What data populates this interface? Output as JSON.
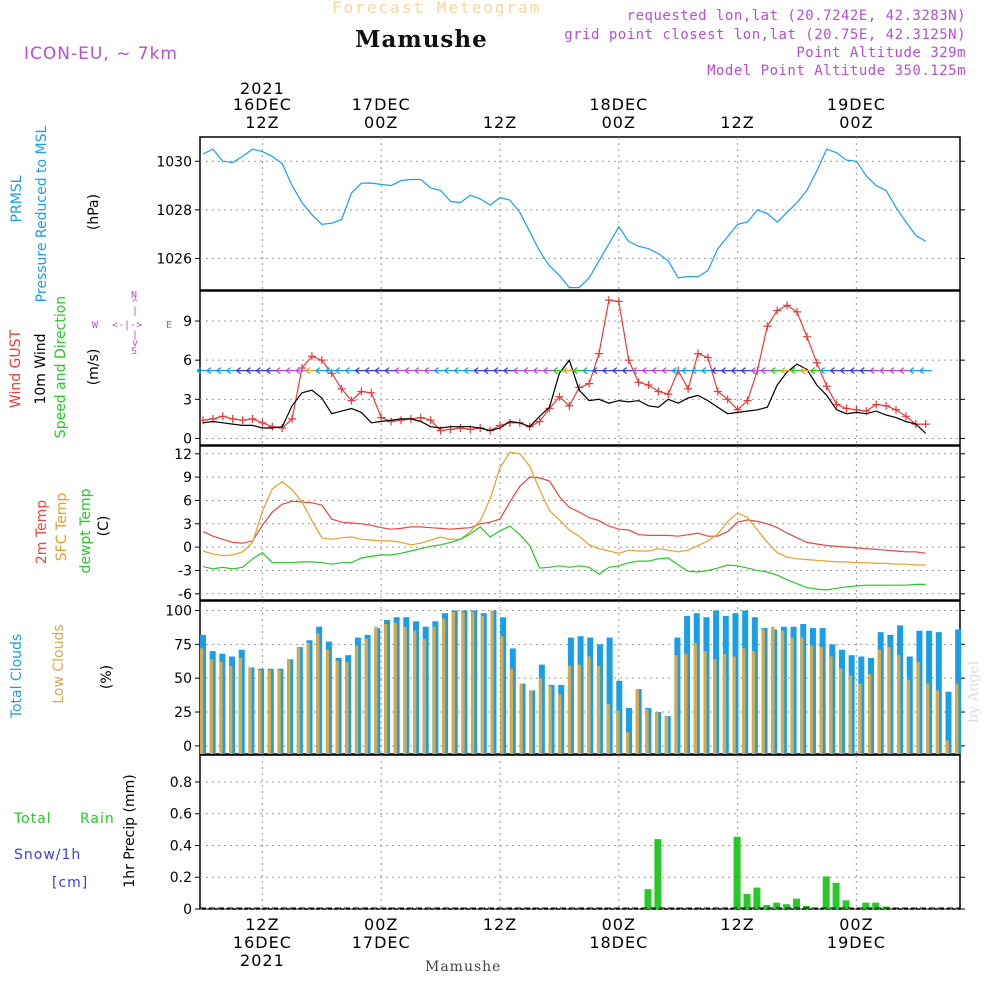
{
  "header": {
    "top_title": "Forecast Meteogram",
    "station": "Mamushe",
    "model": "ICON-EU, ~ 7km",
    "requested": "requested lon,lat (20.7242E, 42.3283N)",
    "gridpoint": "grid point closest lon,lat (20.75E, 42.3125N)",
    "point_alt": "Point Altitude 329m",
    "model_alt": "Model Point Altitude 350.125m",
    "footer_station": "Mamushe",
    "credit": "by Angel"
  },
  "colors": {
    "pressure": "#1a9fe6",
    "gust": "#e63c3c",
    "wind": "#000000",
    "temp2m": "#e64646",
    "sfctemp": "#e6a028",
    "dewpt": "#28c828",
    "total_clouds": "#1a9fe6",
    "low_clouds": "#d2aa50",
    "rain": "#28c828",
    "snow": "#3c3cdc",
    "purple": "#b450d2"
  },
  "time_axis": {
    "top_labels": [
      {
        "idx": 6,
        "l1": "2021",
        "l2": "16DEC",
        "l3": "12Z"
      },
      {
        "idx": 18,
        "l1": "",
        "l2": "17DEC",
        "l3": "00Z"
      },
      {
        "idx": 30,
        "l1": "",
        "l2": "",
        "l3": "12Z"
      },
      {
        "idx": 42,
        "l1": "",
        "l2": "18DEC",
        "l3": "00Z"
      },
      {
        "idx": 54,
        "l1": "",
        "l2": "",
        "l3": "12Z"
      },
      {
        "idx": 66,
        "l1": "",
        "l2": "19DEC",
        "l3": "00Z"
      }
    ],
    "bottom_labels": [
      {
        "idx": 6,
        "l1": "12Z",
        "l2": "16DEC",
        "l3": "2021"
      },
      {
        "idx": 18,
        "l1": "00Z",
        "l2": "17DEC",
        "l3": ""
      },
      {
        "idx": 30,
        "l1": "12Z",
        "l2": "",
        "l3": ""
      },
      {
        "idx": 42,
        "l1": "00Z",
        "l2": "18DEC",
        "l3": ""
      },
      {
        "idx": 54,
        "l1": "12Z",
        "l2": "",
        "l3": ""
      },
      {
        "idx": 66,
        "l1": "00Z",
        "l2": "19DEC",
        "l3": ""
      }
    ]
  },
  "panel_labels": {
    "pressure": [
      "PRMSL",
      "Pressure Reduced to MSL",
      "(hPa)"
    ],
    "wind": [
      "Wind GUST",
      "10m Wind",
      "Speed and Direction",
      "(m/s)"
    ],
    "compass": {
      "n": "N",
      "s": "S",
      "w": "W",
      "e": "E"
    },
    "temp": [
      "2m Temp",
      "SFC Temp",
      "dewpt Temp",
      "(C)"
    ],
    "clouds": [
      "Total Clouds",
      "Low Clouds",
      "(%)"
    ],
    "precip": [
      "Total",
      "Rain",
      "Snow/1h",
      "[cm]",
      "1hr Precip (mm)"
    ]
  },
  "chart_data": [
    {
      "type": "line",
      "title": "PRMSL Pressure Reduced to MSL",
      "ylabel": "(hPa)",
      "ylim": [
        1024.7,
        1031
      ],
      "yticks": [
        1026,
        1028,
        1030
      ],
      "series": [
        {
          "name": "PRMSL",
          "values": [
            1030.3,
            1030.5,
            1030.0,
            1029.95,
            1030.2,
            1030.5,
            1030.4,
            1030.2,
            1029.9,
            1029.0,
            1028.3,
            1027.8,
            1027.4,
            1027.45,
            1027.6,
            1028.7,
            1029.1,
            1029.1,
            1029.05,
            1029.0,
            1029.2,
            1029.25,
            1029.25,
            1028.9,
            1028.8,
            1028.35,
            1028.3,
            1028.6,
            1028.45,
            1028.2,
            1028.5,
            1028.4,
            1027.9,
            1027.1,
            1026.3,
            1025.7,
            1025.3,
            1024.8,
            1024.8,
            1025.2,
            1025.9,
            1026.6,
            1027.3,
            1026.7,
            1026.5,
            1026.4,
            1026.2,
            1025.9,
            1025.2,
            1025.25,
            1025.25,
            1025.5,
            1026.4,
            1026.9,
            1027.4,
            1027.5,
            1028.0,
            1027.85,
            1027.5,
            1027.9,
            1028.3,
            1028.8,
            1029.6,
            1030.5,
            1030.35,
            1030.05,
            1030.0,
            1029.4,
            1029.0,
            1028.8,
            1028.1,
            1027.5,
            1026.95,
            1026.7
          ]
        }
      ]
    },
    {
      "type": "line",
      "title": "Wind GUST / 10m Wind Speed and Direction",
      "ylabel": "(m/s)",
      "ylim": [
        -0.5,
        11.3
      ],
      "yticks": [
        0,
        3,
        6,
        9
      ],
      "series": [
        {
          "name": "Wind GUST",
          "values": [
            1.4,
            1.5,
            1.7,
            1.5,
            1.4,
            1.5,
            1.2,
            0.9,
            0.8,
            1.5,
            5.4,
            6.3,
            6.0,
            5.0,
            3.8,
            2.9,
            3.6,
            3.5,
            1.6,
            1.3,
            1.4,
            1.5,
            1.6,
            1.4,
            0.6,
            0.7,
            0.8,
            0.7,
            0.8,
            0.6,
            1.0,
            1.2,
            1.2,
            0.9,
            1.3,
            2.3,
            3.2,
            2.5,
            3.9,
            4.2,
            6.5,
            10.6,
            10.5,
            6.0,
            4.3,
            4.1,
            3.6,
            3.4,
            5.2,
            3.8,
            6.5,
            6.2,
            3.6,
            3.0,
            2.2,
            2.9,
            5.2,
            8.6,
            9.8,
            10.2,
            9.7,
            7.8,
            5.8,
            4.0,
            2.6,
            2.3,
            2.2,
            2.1,
            2.6,
            2.5,
            2.2,
            1.7,
            1.1,
            1.1
          ]
        },
        {
          "name": "10m Wind",
          "values": [
            1.2,
            1.3,
            1.2,
            1.1,
            1.0,
            1.0,
            0.8,
            0.8,
            0.9,
            2.5,
            3.5,
            3.7,
            3.1,
            1.9,
            2.1,
            2.3,
            2.0,
            1.2,
            1.3,
            1.4,
            1.5,
            1.5,
            1.3,
            0.9,
            0.8,
            0.9,
            0.9,
            0.9,
            0.8,
            0.6,
            0.8,
            1.3,
            1.2,
            0.9,
            1.7,
            2.4,
            5.0,
            6.0,
            3.7,
            2.9,
            3.0,
            2.7,
            2.9,
            2.8,
            2.9,
            2.5,
            2.4,
            3.0,
            2.7,
            3.1,
            3.3,
            2.9,
            2.4,
            1.9,
            2.0,
            2.1,
            2.2,
            2.4,
            4.1,
            5.1,
            5.7,
            5.3,
            4.1,
            3.3,
            2.2,
            1.9,
            2.0,
            1.9,
            2.1,
            1.8,
            1.6,
            1.3,
            1.1,
            0.4
          ]
        }
      ],
      "wind_barbs": {
        "direction": "from east",
        "speed_scale": [
          0,
          3,
          6,
          9
        ]
      }
    },
    {
      "type": "line",
      "title": "2m Temp / SFC Temp / dewpt Temp",
      "ylabel": "(C)",
      "ylim": [
        -6.8,
        13
      ],
      "yticks": [
        -6,
        -3,
        0,
        3,
        6,
        9,
        12
      ],
      "series": [
        {
          "name": "2m Temp",
          "values": [
            2.0,
            1.4,
            1.0,
            0.6,
            0.5,
            0.8,
            2.8,
            4.5,
            5.5,
            5.9,
            5.8,
            5.7,
            5.4,
            3.6,
            3.2,
            3.1,
            3.0,
            2.8,
            2.5,
            2.3,
            2.4,
            2.6,
            2.6,
            2.5,
            2.4,
            2.3,
            2.4,
            2.5,
            3.0,
            3.2,
            3.6,
            5.8,
            7.8,
            9.0,
            8.9,
            8.5,
            6.5,
            5.1,
            4.5,
            3.8,
            3.4,
            2.7,
            2.3,
            2.2,
            1.6,
            1.5,
            1.5,
            1.5,
            1.4,
            1.6,
            1.8,
            1.4,
            1.4,
            2.0,
            3.2,
            3.5,
            3.3,
            3.0,
            2.5,
            1.8,
            1.2,
            0.6,
            0.4,
            0.2,
            0.1,
            0.0,
            -0.1,
            -0.2,
            -0.3,
            -0.4,
            -0.5,
            -0.6,
            -0.6,
            -0.8
          ]
        },
        {
          "name": "SFC Temp",
          "values": [
            -0.5,
            -0.9,
            -1.1,
            -1.0,
            -0.6,
            0.6,
            4.6,
            7.5,
            8.4,
            7.4,
            5.8,
            3.4,
            1.2,
            1.0,
            1.2,
            1.3,
            1.0,
            0.9,
            0.8,
            0.8,
            0.6,
            0.3,
            0.5,
            0.9,
            1.3,
            1.0,
            1.0,
            2.0,
            3.4,
            6.2,
            10.2,
            12.2,
            12.0,
            10.4,
            7.4,
            4.7,
            3.5,
            2.2,
            1.4,
            0.3,
            -0.2,
            -0.5,
            -0.8,
            -0.4,
            -0.5,
            -0.5,
            -0.2,
            -0.4,
            -0.6,
            -0.4,
            0.2,
            0.8,
            1.7,
            3.3,
            4.4,
            3.8,
            2.2,
            0.6,
            -0.7,
            -1.3,
            -1.5,
            -1.6,
            -1.7,
            -1.8,
            -1.9,
            -1.9,
            -2.0,
            -2.0,
            -2.1,
            -2.1,
            -2.2,
            -2.2,
            -2.3,
            -2.3
          ]
        },
        {
          "name": "dewpt Temp",
          "values": [
            -2.5,
            -2.8,
            -2.6,
            -2.8,
            -2.6,
            -1.5,
            -0.7,
            -2.0,
            -2.0,
            -2.0,
            -1.9,
            -1.9,
            -2.0,
            -2.2,
            -2.0,
            -2.0,
            -1.4,
            -1.2,
            -1.0,
            -1.0,
            -0.8,
            -0.5,
            -0.2,
            0.1,
            0.3,
            0.6,
            1.0,
            1.7,
            2.6,
            1.3,
            2.1,
            2.7,
            1.6,
            0.2,
            -2.7,
            -2.6,
            -2.4,
            -2.6,
            -2.4,
            -2.6,
            -3.5,
            -2.6,
            -2.4,
            -2.0,
            -1.8,
            -1.8,
            -1.5,
            -1.4,
            -2.3,
            -3.1,
            -3.2,
            -3.0,
            -2.7,
            -2.3,
            -2.4,
            -2.7,
            -3.0,
            -3.2,
            -3.6,
            -4.2,
            -4.7,
            -5.2,
            -5.4,
            -5.5,
            -5.3,
            -5.1,
            -5.0,
            -4.9,
            -4.9,
            -4.9,
            -4.9,
            -4.9,
            -4.8,
            -4.8
          ]
        }
      ]
    },
    {
      "type": "bar",
      "title": "Total Clouds / Low Clouds",
      "ylabel": "(%)",
      "ylim": [
        -6,
        107
      ],
      "yticks": [
        0,
        25,
        50,
        75,
        100
      ],
      "series": [
        {
          "name": "Total Clouds",
          "values": [
            82,
            70,
            68,
            66,
            71,
            58,
            57,
            57,
            57,
            64,
            73,
            78,
            88,
            77,
            65,
            67,
            80,
            82,
            87,
            93,
            95,
            95,
            92,
            88,
            92,
            98,
            100,
            100,
            100,
            98,
            100,
            95,
            72,
            46,
            41,
            60,
            45,
            45,
            80,
            81,
            80,
            75,
            80,
            48,
            28,
            42,
            28,
            25,
            22,
            80,
            96,
            98,
            95,
            100,
            96,
            98,
            100,
            95,
            87,
            86,
            88,
            88,
            90,
            87,
            87,
            75,
            71,
            67,
            66,
            65,
            84,
            82,
            89,
            66,
            85,
            85,
            84,
            40,
            86
          ]
        },
        {
          "name": "Low Clouds",
          "values": [
            72,
            64,
            62,
            59,
            65,
            58,
            56,
            56,
            56,
            64,
            73,
            76,
            83,
            71,
            63,
            62,
            74,
            79,
            88,
            90,
            91,
            88,
            85,
            79,
            88,
            94,
            99,
            99,
            99,
            96,
            100,
            81,
            57,
            46,
            41,
            50,
            44,
            38,
            59,
            60,
            66,
            59,
            31,
            26,
            10,
            42,
            27,
            25,
            22,
            67,
            68,
            76,
            70,
            64,
            68,
            66,
            72,
            70,
            86,
            88,
            85,
            80,
            80,
            74,
            73,
            66,
            57,
            52,
            46,
            53,
            71,
            73,
            67,
            49,
            62,
            46,
            41,
            4,
            46
          ]
        }
      ]
    },
    {
      "type": "bar",
      "title": "Total Rain / Snow 1hr Precip",
      "ylabel": "1hr Precip (mm)",
      "ylim": [
        0,
        0.97
      ],
      "yticks": [
        0,
        0.2,
        0.4,
        0.6,
        0.8
      ],
      "series": [
        {
          "name": "Total Rain",
          "values": [
            0,
            0,
            0,
            0,
            0,
            0,
            0,
            0,
            0,
            0,
            0,
            0,
            0,
            0,
            0,
            0,
            0,
            0,
            0,
            0,
            0,
            0,
            0,
            0,
            0,
            0,
            0,
            0,
            0,
            0,
            0,
            0,
            0,
            0,
            0,
            0,
            0,
            0,
            0,
            0,
            0,
            0,
            0,
            0,
            0,
            0.125,
            0.44,
            0,
            0,
            0,
            0,
            0,
            0,
            0,
            0.455,
            0.095,
            0.135,
            0.025,
            0.04,
            0.03,
            0.065,
            0.02,
            0,
            0.205,
            0.165,
            0.055,
            0,
            0.04,
            0.04,
            0.015,
            0,
            0,
            0,
            0,
            0,
            0,
            0,
            0,
            0
          ]
        },
        {
          "name": "Snow/1h",
          "values": []
        }
      ]
    }
  ]
}
